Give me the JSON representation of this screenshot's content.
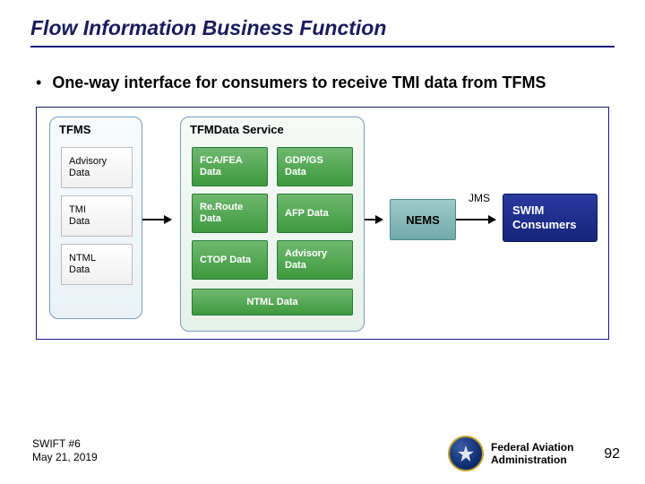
{
  "title": "Flow Information Business Function",
  "bullet": "One-way interface for consumers to receive TMI data from TFMS",
  "diagram": {
    "tfms": {
      "title": "TFMS",
      "items": [
        "Advisory\nData",
        "TMI\nData",
        "NTML\nData"
      ]
    },
    "service": {
      "title": "TFMData Service",
      "rows": [
        [
          "FCA/FEA Data",
          "GDP/GS Data"
        ],
        [
          "Re.Route Data",
          "AFP Data"
        ],
        [
          "CTOP Data",
          "Advisory Data"
        ]
      ],
      "ntml": "NTML Data"
    },
    "nems": "NEMS",
    "jms": "JMS",
    "swim": "SWIM Consumers"
  },
  "footer": {
    "event": "SWIFT #6",
    "date": "May 21, 2019",
    "org_line1": "Federal Aviation",
    "org_line2": "Administration",
    "page": "92"
  },
  "colors": {
    "title_color": "#1a1a5c",
    "underline": "#1a1a7a",
    "panel_border": "#7a9bbf",
    "green_cell_bg_top": "#6fb86f",
    "green_cell_bg_bottom": "#3e9a3e",
    "nems_bg_top": "#9fcaca",
    "nems_bg_bottom": "#72aaaa",
    "swim_bg_top": "#2a3aa0",
    "swim_bg_bottom": "#16247a"
  }
}
